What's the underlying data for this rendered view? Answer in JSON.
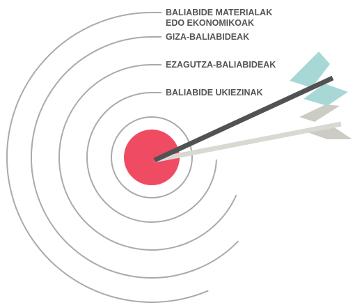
{
  "labels": [
    [
      "BALIABIDE MATERIALAK",
      "EDO EKONOMIKOAK"
    ],
    [
      "GIZA-BALIABIDEAK"
    ],
    [
      "EZAGUTZA-BALIABIDEAK"
    ],
    [
      "BALIABIDE UKIEZINAK"
    ]
  ]
}
